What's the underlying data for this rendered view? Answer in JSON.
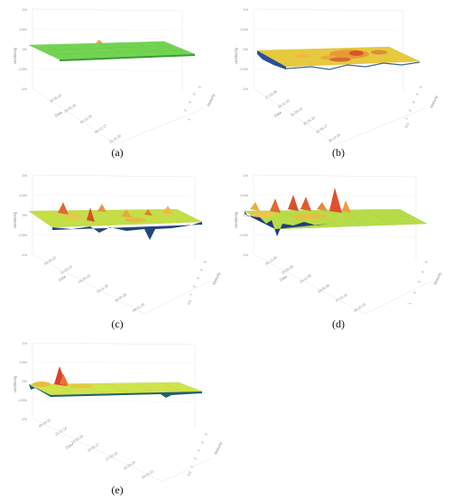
{
  "figure": {
    "panels": [
      {
        "id": "a",
        "caption": "(a)",
        "zlabel": "cerebenig",
        "date_label": "Date",
        "date_suffix": "29.05.16",
        "maturity_label": "Maturity",
        "z_ticks": [
          "1%",
          "0.5%",
          "0%",
          "-0.5%",
          "-1%"
        ],
        "date_ticks": [
          "25.06.14",
          "29.05.16",
          "01.11.16",
          "08.12.17",
          "21.10.20"
        ],
        "maturity_ticks": [
          "1",
          "2",
          "3",
          "4",
          "5"
        ],
        "surface": {
          "style": "flat-green",
          "colors": [
            "#7ed957",
            "#5cc94a"
          ]
        }
      },
      {
        "id": "b",
        "caption": "(b)",
        "zlabel": "cerebenig",
        "date_label": "Date",
        "date_suffix": "",
        "maturity_label": "Maturity",
        "z_ticks": [
          "1%",
          "0.5%",
          "0%",
          "-0.5%",
          "-1%"
        ],
        "date_ticks": [
          "17.03.08",
          "15.11.10",
          "11.03.13",
          "25.05.15",
          "15.06.17",
          "20.12.19"
        ],
        "maturity_ticks": [
          "0.5",
          "1",
          "2",
          "3",
          "4",
          "5"
        ],
        "surface": {
          "style": "yellow-orange",
          "colors": [
            "#e8d23a",
            "#f0a13a",
            "#d85a2a"
          ]
        }
      },
      {
        "id": "c",
        "caption": "(c)",
        "zlabel": "cerebenig",
        "date_label": "Date",
        "date_suffix": "",
        "maturity_label": "Maturity",
        "z_ticks": [
          "1%",
          "0.5%",
          "0%",
          "-0.5%",
          "-1%"
        ],
        "date_ticks": [
          "03.06.12",
          "11.03.13",
          "04.06.15",
          "19.11.16",
          "16.05.18",
          "09.01.20"
        ],
        "maturity_ticks": [
          "0.5",
          "1",
          "2",
          "3",
          "4",
          "5"
        ],
        "surface": {
          "style": "mixed-peaks",
          "colors": [
            "#b5e04a",
            "#e8d23a",
            "#e0702e",
            "#1c3d8c"
          ]
        }
      },
      {
        "id": "d",
        "caption": "(d)",
        "zlabel": "cerebenig",
        "date_label": "Date",
        "date_suffix": "",
        "maturity_label": "Maturity",
        "z_ticks": [
          "1%",
          "0.5%",
          "0%",
          "-0.5%",
          "-1%"
        ],
        "date_ticks": [
          "06.12.00",
          "23.06.03",
          "14.12.05",
          "18.06.08",
          "07.02.11",
          "29.10.13"
        ],
        "maturity_ticks": [
          "1",
          "2",
          "3",
          "4",
          "5"
        ],
        "surface": {
          "style": "spiky-left",
          "colors": [
            "#b5e04a",
            "#e8d23a",
            "#e0502e",
            "#1c3d8c"
          ]
        }
      },
      {
        "id": "e",
        "caption": "(e)",
        "zlabel": "cerebenig",
        "date_label": "Date",
        "date_suffix": "",
        "maturity_label": "Maturity",
        "z_ticks": [
          "1%",
          "0.5%",
          "0%",
          "-0.5%",
          "-1%"
        ],
        "date_ticks": [
          "06.09.13",
          "21.11.14",
          "13.03.16",
          "10.06.17",
          "27.02.19",
          "15.04.20",
          "04.10.21"
        ],
        "maturity_ticks": [
          "0.5",
          "1",
          "2",
          "3",
          "4",
          "5"
        ],
        "surface": {
          "style": "single-peak-left",
          "colors": [
            "#c9e44a",
            "#e8d23a",
            "#d8402a",
            "#1c6d6c"
          ]
        }
      }
    ]
  }
}
